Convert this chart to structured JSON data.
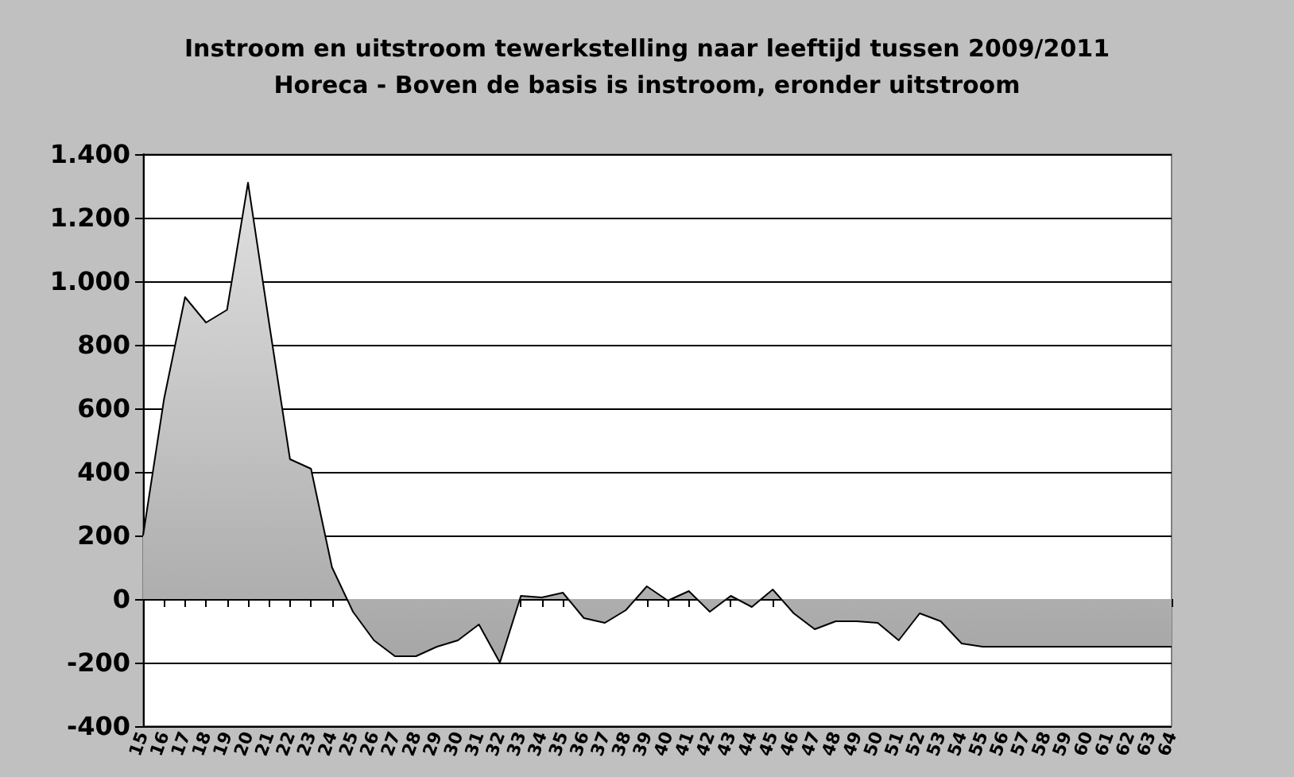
{
  "chart_data": {
    "type": "area",
    "title": "Instroom en uitstroom tewerkstelling naar leeftijd tussen 2009/2011",
    "subtitle": "Horeca - Boven de basis is instroom, eronder uitstroom",
    "categories": [
      "15",
      "16",
      "17",
      "18",
      "19",
      "20",
      "21",
      "22",
      "23",
      "24",
      "25",
      "26",
      "27",
      "28",
      "29",
      "30",
      "31",
      "32",
      "33",
      "34",
      "35",
      "36",
      "37",
      "38",
      "39",
      "40",
      "41",
      "42",
      "43",
      "44",
      "45",
      "46",
      "47",
      "48",
      "49",
      "50",
      "51",
      "52",
      "53",
      "54",
      "55",
      "56",
      "57",
      "58",
      "59",
      "60",
      "61",
      "62",
      "63",
      "64"
    ],
    "series": [
      {
        "color": "#a6a6a6",
        "values": [
          200,
          630,
          950,
          870,
          910,
          1310,
          870,
          440,
          410,
          100,
          -40,
          -130,
          -180,
          -180,
          -150,
          -130,
          -80,
          -200,
          10,
          5,
          20,
          -60,
          -75,
          -35,
          40,
          -5,
          25,
          -40,
          10,
          -25,
          30,
          -45,
          -95,
          -70,
          -70,
          -75,
          -130,
          -45,
          -70,
          -140,
          -150,
          -150,
          -150,
          -150,
          -150,
          -150,
          -150,
          -150,
          -150,
          -150
        ]
      }
    ],
    "ylim": [
      -400,
      1400
    ],
    "yticks": [
      {
        "value": -400,
        "label": "-400"
      },
      {
        "value": -200,
        "label": "-200"
      },
      {
        "value": 0,
        "label": "0"
      },
      {
        "value": 200,
        "label": "200"
      },
      {
        "value": 400,
        "label": "400"
      },
      {
        "value": 600,
        "label": "600"
      },
      {
        "value": 800,
        "label": "800"
      },
      {
        "value": 1000,
        "label": "1.000"
      },
      {
        "value": 1200,
        "label": "1.200"
      },
      {
        "value": 1400,
        "label": "1.400"
      }
    ],
    "grid": "y"
  }
}
